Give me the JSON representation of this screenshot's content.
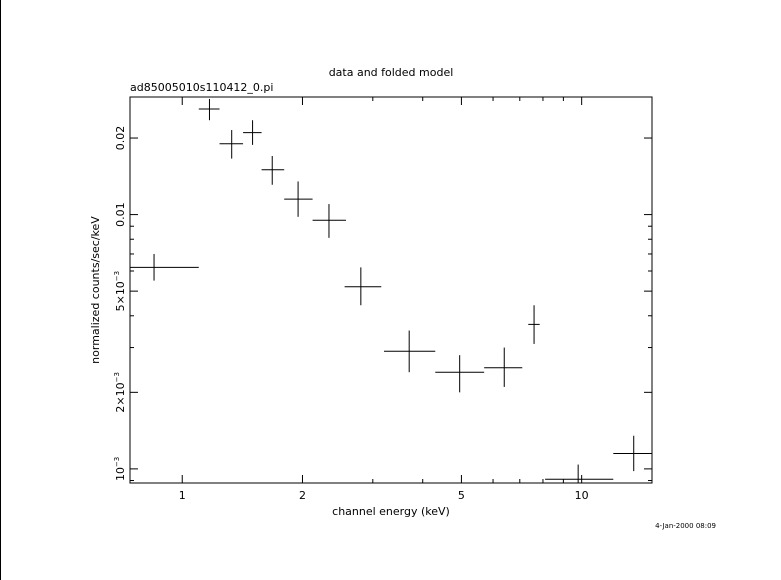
{
  "chart_data": {
    "type": "scatter",
    "title": "data and folded model",
    "subtitle": "ad85005010s110412_0.pi",
    "xlabel": "channel energy (keV)",
    "ylabel": "normalized counts/sec/keV",
    "x_scale": "log",
    "y_scale": "log",
    "xlim": [
      0.74,
      15.0
    ],
    "ylim": [
      0.00088,
      0.029
    ],
    "grid": false,
    "x_tick_labels": [
      {
        "value": 1,
        "label": "1"
      },
      {
        "value": 2,
        "label": "2"
      },
      {
        "value": 5,
        "label": "5"
      },
      {
        "value": 10,
        "label": "10"
      }
    ],
    "y_tick_labels": [
      {
        "value": 0.001,
        "base": "10",
        "exp": "−3"
      },
      {
        "value": 0.002,
        "base": "2×10",
        "exp": "−3"
      },
      {
        "value": 0.005,
        "base": "5×10",
        "exp": "−3"
      },
      {
        "value": 0.01,
        "base": "0.01",
        "exp": ""
      },
      {
        "value": 0.02,
        "base": "0.02",
        "exp": ""
      }
    ],
    "series": [
      {
        "points": [
          {
            "x": 0.85,
            "xlo": 0.74,
            "xhi": 1.1,
            "y": 0.0062,
            "ylo": 0.0055,
            "yhi": 0.007
          },
          {
            "x": 1.17,
            "xlo": 1.1,
            "xhi": 1.24,
            "y": 0.026,
            "ylo": 0.0235,
            "yhi": 0.0285
          },
          {
            "x": 1.33,
            "xlo": 1.24,
            "xhi": 1.42,
            "y": 0.019,
            "ylo": 0.0166,
            "yhi": 0.0215
          },
          {
            "x": 1.5,
            "xlo": 1.42,
            "xhi": 1.58,
            "y": 0.021,
            "ylo": 0.0188,
            "yhi": 0.0235
          },
          {
            "x": 1.68,
            "xlo": 1.58,
            "xhi": 1.8,
            "y": 0.015,
            "ylo": 0.0131,
            "yhi": 0.017
          },
          {
            "x": 1.95,
            "xlo": 1.8,
            "xhi": 2.12,
            "y": 0.0115,
            "ylo": 0.0098,
            "yhi": 0.0135
          },
          {
            "x": 2.33,
            "xlo": 2.12,
            "xhi": 2.57,
            "y": 0.0095,
            "ylo": 0.0081,
            "yhi": 0.011
          },
          {
            "x": 2.8,
            "xlo": 2.55,
            "xhi": 3.15,
            "y": 0.0052,
            "ylo": 0.0044,
            "yhi": 0.0062
          },
          {
            "x": 3.7,
            "xlo": 3.2,
            "xhi": 4.3,
            "y": 0.0029,
            "ylo": 0.0024,
            "yhi": 0.0035
          },
          {
            "x": 4.95,
            "xlo": 4.3,
            "xhi": 5.7,
            "y": 0.0024,
            "ylo": 0.002,
            "yhi": 0.0028
          },
          {
            "x": 6.4,
            "xlo": 5.7,
            "xhi": 7.1,
            "y": 0.0025,
            "ylo": 0.0021,
            "yhi": 0.003
          },
          {
            "x": 7.6,
            "xlo": 7.35,
            "xhi": 7.85,
            "y": 0.0037,
            "ylo": 0.0031,
            "yhi": 0.0044
          },
          {
            "x": 9.8,
            "xlo": 8.1,
            "xhi": 12.0,
            "y": 0.00091,
            "ylo": 0.0008,
            "yhi": 0.00104
          },
          {
            "x": 13.5,
            "xlo": 12.0,
            "xhi": 15.0,
            "y": 0.00115,
            "ylo": 0.00098,
            "yhi": 0.00135
          }
        ]
      }
    ],
    "timestamp": "4-Jan-2000 08:09"
  }
}
